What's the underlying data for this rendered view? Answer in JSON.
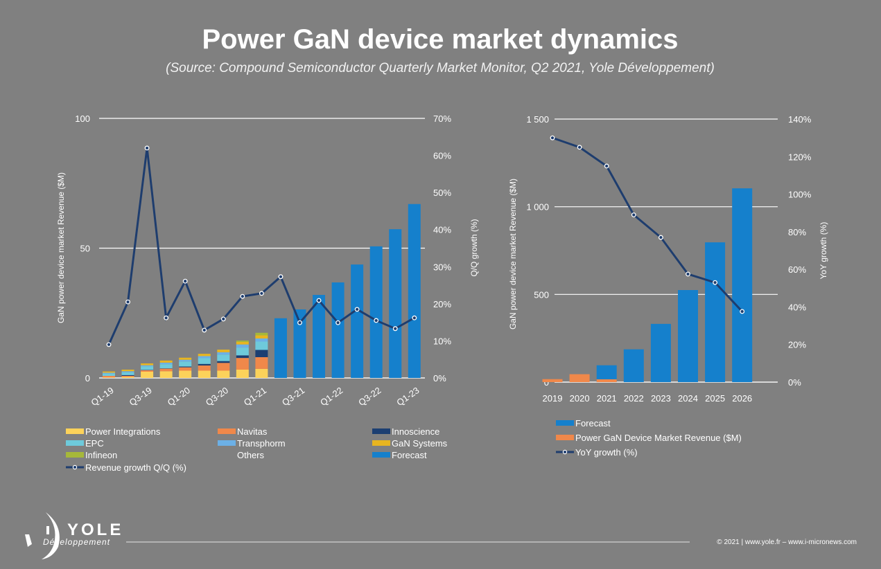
{
  "header": {
    "title": "Power GaN device market dynamics",
    "subtitle": "(Source: Compound Semiconductor Quarterly Market Monitor, Q2 2021, Yole Développement)"
  },
  "footer": {
    "logo_text": "YOLE",
    "logo_subtext": "Développement",
    "copyright": "© 2021 | www.yole.fr – www.i-micronews.com"
  },
  "colors": {
    "background": "#808080",
    "power_integrations": "#fcd25a",
    "navitas": "#f0884a",
    "innoscience": "#1c3f72",
    "epc": "#6ecadb",
    "transphorm": "#6cb0e6",
    "gan_systems": "#e8b520",
    "infineon": "#a6b83a",
    "forecast": "#1580cc",
    "growth_line": "#1e3d6e"
  },
  "chart_data": [
    {
      "type": "bar",
      "stacked": true,
      "title": "",
      "ylabel": "GaN power device market Revenue ($M)",
      "y2label": "Q/Q growth (%)",
      "ylim": [
        0,
        100
      ],
      "y2lim": [
        0,
        70
      ],
      "yticks": [
        "0",
        "50",
        "100"
      ],
      "y2ticks": [
        "0%",
        "10%",
        "20%",
        "30%",
        "40%",
        "50%",
        "60%",
        "70%"
      ],
      "grid": true,
      "categories": [
        "Q1-19",
        "Q2-19",
        "Q3-19",
        "Q4-19",
        "Q1-20",
        "Q2-20",
        "Q3-20",
        "Q4-20",
        "Q1-21",
        "Q2-21",
        "Q3-21",
        "Q4-21",
        "Q1-22",
        "Q2-22",
        "Q3-22",
        "Q4-22",
        "Q1-23"
      ],
      "xtick_labels": [
        "Q1-19",
        "Q3-19",
        "Q1-20",
        "Q3-20",
        "Q1-21",
        "Q3-21",
        "Q1-22",
        "Q3-22",
        "Q1-23"
      ],
      "series": [
        {
          "name": "Power Integrations",
          "color_key": "power_integrations",
          "values": [
            0.2,
            0.4,
            2.4,
            2.6,
            2.8,
            2.8,
            2.8,
            3.2,
            3.5,
            null,
            null,
            null,
            null,
            null,
            null,
            null,
            null
          ]
        },
        {
          "name": "Navitas",
          "color_key": "navitas",
          "values": [
            0.6,
            0.4,
            0.6,
            1.0,
            1.3,
            2.0,
            3.0,
            4.5,
            4.5,
            null,
            null,
            null,
            null,
            null,
            null,
            null,
            null
          ]
        },
        {
          "name": "Innoscience",
          "color_key": "innoscience",
          "values": [
            0,
            0.3,
            0.1,
            0.1,
            0.3,
            0.6,
            0.7,
            1.0,
            2.8,
            null,
            null,
            null,
            null,
            null,
            null,
            null,
            null
          ]
        },
        {
          "name": "EPC",
          "color_key": "epc",
          "values": [
            0.9,
            1.1,
            1.4,
            1.6,
            1.9,
            2.2,
            2.5,
            3.0,
            3.2,
            null,
            null,
            null,
            null,
            null,
            null,
            null,
            null
          ]
        },
        {
          "name": "Transphorm",
          "color_key": "transphorm",
          "values": [
            0.3,
            0.4,
            0.4,
            0.6,
            0.7,
            0.8,
            0.9,
            1.2,
            1.2,
            null,
            null,
            null,
            null,
            null,
            null,
            null,
            null
          ]
        },
        {
          "name": "GaN Systems",
          "color_key": "gan_systems",
          "values": [
            0.5,
            0.6,
            0.7,
            0.8,
            0.8,
            0.9,
            1.0,
            1.0,
            1.2,
            null,
            null,
            null,
            null,
            null,
            null,
            null,
            null
          ]
        },
        {
          "name": "Infineon",
          "color_key": "infineon",
          "values": [
            0,
            0,
            0,
            0,
            0,
            0,
            0,
            0.5,
            1.0,
            null,
            null,
            null,
            null,
            null,
            null,
            null,
            null
          ]
        },
        {
          "name": "Others",
          "color_key": "background",
          "values": [
            0,
            0,
            0,
            0,
            0,
            0,
            0,
            0,
            0,
            null,
            null,
            null,
            null,
            null,
            null,
            null,
            null
          ]
        },
        {
          "name": "Forecast",
          "color_key": "forecast",
          "values": [
            null,
            null,
            null,
            null,
            null,
            null,
            null,
            null,
            null,
            23,
            26.4,
            32,
            36.8,
            43.7,
            50.7,
            57.3,
            67
          ]
        },
        {
          "name": "Revenue growth Q/Q (%)",
          "type": "line",
          "axis": "y2",
          "color_key": "growth_line",
          "values": [
            9.0,
            20.5,
            62,
            16.2,
            26.1,
            12.9,
            15.9,
            22,
            22.8,
            27.3,
            14.9,
            20.9,
            14.9,
            18.5,
            15.5,
            13.3,
            16.2
          ]
        }
      ],
      "legend": "bottom"
    },
    {
      "type": "bar",
      "title": "",
      "ylabel": "GaN power device market Revenue ($M)",
      "y2label": "YoY growth (%)",
      "ylim": [
        0,
        1500
      ],
      "y2lim": [
        0,
        140
      ],
      "yticks": [
        "0",
        "500",
        "1 000",
        "1 500"
      ],
      "y2ticks": [
        "0%",
        "20%",
        "40%",
        "60%",
        "80%",
        "100%",
        "120%",
        "140%"
      ],
      "grid": true,
      "categories": [
        "2019",
        "2020",
        "2021",
        "2022",
        "2023",
        "2024",
        "2025",
        "2026"
      ],
      "series": [
        {
          "name": "Forecast",
          "color_key": "forecast",
          "values": [
            null,
            null,
            96,
            187,
            332,
            525,
            797,
            1105
          ]
        },
        {
          "name": "Power GaN Device Market Revenue ($M)",
          "color_key": "navitas",
          "values": [
            17,
            45,
            16,
            null,
            null,
            null,
            null,
            null
          ]
        },
        {
          "name": "YoY growth (%)",
          "type": "line",
          "axis": "y2",
          "color_key": "growth_line",
          "values": [
            130,
            125,
            115,
            89,
            77,
            57.5,
            53,
            37.6
          ]
        }
      ],
      "legend": "bottom"
    }
  ]
}
